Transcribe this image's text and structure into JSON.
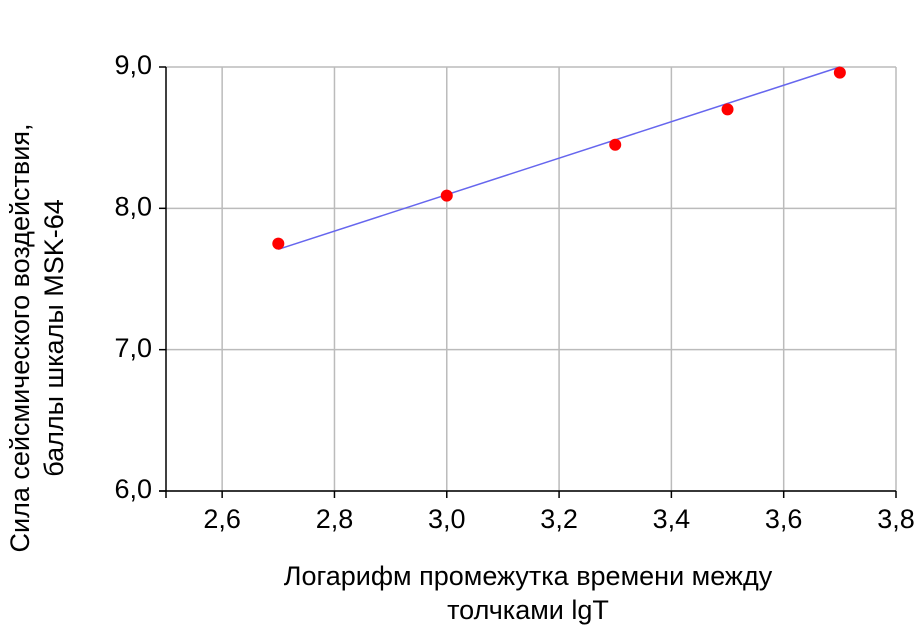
{
  "chart_data": {
    "type": "scatter",
    "x_label": [
      "Логарифм промежутка времени между",
      "толчками lgT"
    ],
    "y_label": [
      "Сила сейсмического воздействия,",
      "баллы шкалы MSK-64"
    ],
    "x": [
      2.7,
      3.0,
      3.3,
      3.5,
      3.7
    ],
    "values": [
      7.75,
      8.09,
      8.45,
      8.7,
      8.96
    ],
    "color": "#ff0000",
    "fit": {
      "x": [
        2.7,
        3.7
      ],
      "values": [
        7.71,
        9.0
      ],
      "color": "#6666ee"
    },
    "xlim": [
      2.5,
      3.8
    ],
    "xticks": [
      {
        "value": 2.6,
        "label": "2,6"
      },
      {
        "value": 2.8,
        "label": "2,8"
      },
      {
        "value": 3.0,
        "label": "3,0"
      },
      {
        "value": 3.2,
        "label": "3,2"
      },
      {
        "value": 3.4,
        "label": "3,4"
      },
      {
        "value": 3.6,
        "label": "3,6"
      },
      {
        "value": 3.8,
        "label": "3,8"
      }
    ],
    "ylim": [
      6,
      9
    ],
    "yticks": [
      {
        "value": 6,
        "label": "6,0"
      },
      {
        "value": 7,
        "label": "7,0"
      },
      {
        "value": 8,
        "label": "8,0"
      },
      {
        "value": 9,
        "label": "9,0"
      }
    ],
    "grid": true
  }
}
